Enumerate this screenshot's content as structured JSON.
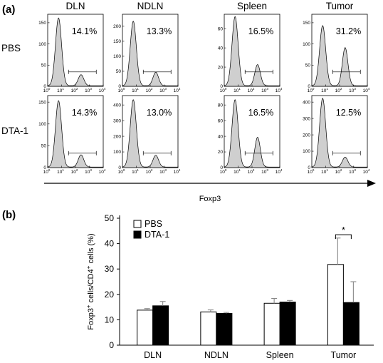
{
  "figure": {
    "panel_a_label": "(a)",
    "panel_b_label": "(b)"
  },
  "chart_data": [
    {
      "type": "area",
      "description_kind": "flow-cytometry-histogram-grid",
      "columns": [
        "DLN",
        "NDLN",
        "Spleen",
        "Tumor"
      ],
      "rows": [
        "PBS",
        "DTA-1"
      ],
      "xlabel": "Foxp3",
      "x_scale": "log",
      "x_ticks": [
        "10^0",
        "10^1",
        "10^2",
        "10^3",
        "10^4"
      ],
      "percentages": [
        [
          "14.1%",
          "13.3%",
          "16.5%",
          "31.2%"
        ],
        [
          "14.3%",
          "13.0%",
          "16.5%",
          "12.5%"
        ]
      ],
      "y_ticks": [
        [
          [
            "0",
            "50",
            "100",
            "150"
          ],
          [
            "0",
            "50",
            "100",
            "150",
            "200"
          ],
          [
            "0",
            "20",
            "40",
            "60"
          ],
          [
            "0",
            "50",
            "100",
            "150"
          ]
        ],
        [
          [
            "0",
            "50",
            "100",
            "150"
          ],
          [
            "0",
            "100",
            "200",
            "300",
            "400"
          ],
          [
            "0",
            "20",
            "40",
            "60",
            "80"
          ],
          [
            "0",
            "100",
            "200",
            "300",
            "400"
          ]
        ]
      ],
      "y_max": [
        [
          170,
          240,
          75,
          170
        ],
        [
          165,
          460,
          92,
          440
        ]
      ],
      "peaks": [
        [
          {
            "neg_height": 160,
            "pos_height": 26
          },
          {
            "neg_height": 215,
            "pos_height": 45
          },
          {
            "neg_height": 72,
            "pos_height": 22
          },
          {
            "neg_height": 142,
            "pos_height": 90
          }
        ],
        [
          {
            "neg_height": 152,
            "pos_height": 28
          },
          {
            "neg_height": 430,
            "pos_height": 75
          },
          {
            "neg_height": 86,
            "pos_height": 38
          },
          {
            "neg_height": 420,
            "pos_height": 60
          }
        ]
      ],
      "gate_range_log": [
        1.5,
        3.5
      ]
    },
    {
      "type": "bar",
      "categories": [
        "DLN",
        "NDLN",
        "Spleen",
        "Tumor"
      ],
      "series": [
        {
          "name": "PBS",
          "color": "#ffffff",
          "values": [
            13.8,
            13.1,
            16.5,
            31.8
          ],
          "errors": [
            0.6,
            0.8,
            1.9,
            10.4
          ]
        },
        {
          "name": "DTA-1",
          "color": "#000000",
          "values": [
            15.5,
            12.5,
            17.0,
            16.8
          ],
          "errors": [
            1.7,
            0.4,
            0.6,
            8.2
          ]
        }
      ],
      "ylabel_parts": {
        "p1": "Foxp3",
        "sup1": "+",
        "p2": " cells/CD4",
        "sup2": "+",
        "p3": " cells (%)"
      },
      "ylim": [
        0,
        50
      ],
      "yticks": [
        0,
        10,
        20,
        30,
        40,
        50
      ],
      "ytick_labels": [
        "0",
        "10",
        "20",
        "30",
        "40",
        "50"
      ],
      "significance": {
        "category": "Tumor",
        "mark": "*"
      },
      "legend_position": "top-left-inside"
    }
  ]
}
